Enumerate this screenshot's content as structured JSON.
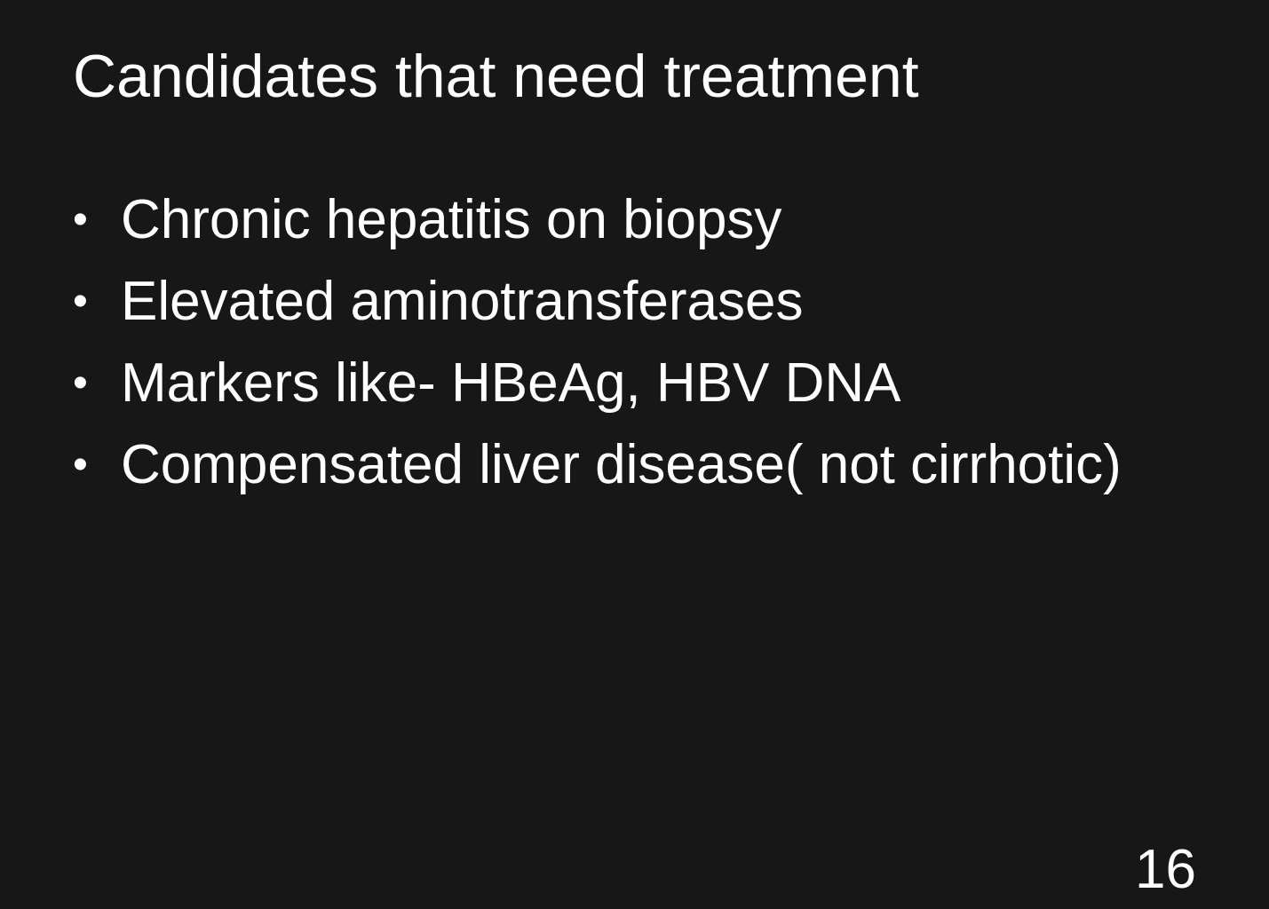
{
  "slide": {
    "title": "Candidates that need treatment",
    "bullet_marker": "•",
    "bullets": [
      "Chronic hepatitis on biopsy",
      "Elevated aminotransferases",
      "Markers like- HBeAg, HBV DNA",
      "Compensated liver disease( not cirrhotic)"
    ],
    "page_number": "16"
  },
  "colors": {
    "background": "#171717",
    "text": "#ffffff"
  }
}
